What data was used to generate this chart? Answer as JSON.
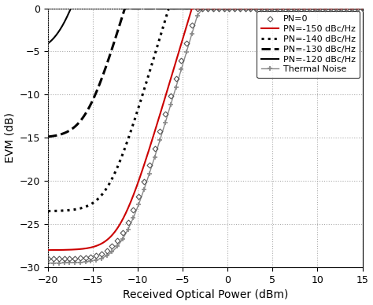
{
  "x_range": [
    -20,
    15
  ],
  "y_range": [
    -30,
    0
  ],
  "xlabel": "Received Optical Power (dBm)",
  "ylabel": "EVM (dB)",
  "grid_color": "#aaaaaa",
  "background_color": "#ffffff",
  "curves": [
    {
      "label": "PN=0",
      "color": "#555555",
      "linestyle": "none",
      "marker": "D",
      "markersize": 3.5,
      "linewidth": 1.0,
      "floor_dB": -29.0,
      "slope": 3.5,
      "x_ref": -5.5
    },
    {
      "label": "PN=-150 dBc/Hz",
      "color": "#cc0000",
      "linestyle": "-",
      "marker": "none",
      "markersize": 0,
      "linewidth": 1.5,
      "floor_dB": -28.0,
      "slope": 3.5,
      "x_ref": -5.5
    },
    {
      "label": "PN=-140 dBc/Hz",
      "color": "#000000",
      "linestyle": ":",
      "marker": "none",
      "markersize": 0,
      "linewidth": 2.2,
      "floor_dB": -23.5,
      "slope": 3.5,
      "x_ref": -5.5
    },
    {
      "label": "PN=-130 dBc/Hz",
      "color": "#000000",
      "linestyle": "--",
      "marker": "none",
      "markersize": 0,
      "linewidth": 2.2,
      "floor_dB": -15.0,
      "slope": 3.5,
      "x_ref": -5.5
    },
    {
      "label": "PN=-120 dBc/Hz",
      "color": "#000000",
      "linestyle": "-",
      "marker": "none",
      "markersize": 0,
      "linewidth": 1.5,
      "floor_dB": -5.2,
      "slope": 3.5,
      "x_ref": -5.5
    },
    {
      "label": "Thermal Noise",
      "color": "#888888",
      "linestyle": "-",
      "marker": "+",
      "markersize": 5,
      "linewidth": 1.0,
      "floor_dB": -29.5,
      "slope": 3.5,
      "x_ref": -5.5
    }
  ],
  "xticks": [
    -20,
    -15,
    -10,
    -5,
    0,
    5,
    10,
    15
  ],
  "yticks": [
    0,
    -5,
    -10,
    -15,
    -20,
    -25,
    -30
  ],
  "legend_fontsize": 8,
  "tick_labelsize": 9,
  "xlabel_fontsize": 10,
  "ylabel_fontsize": 10,
  "title": ""
}
